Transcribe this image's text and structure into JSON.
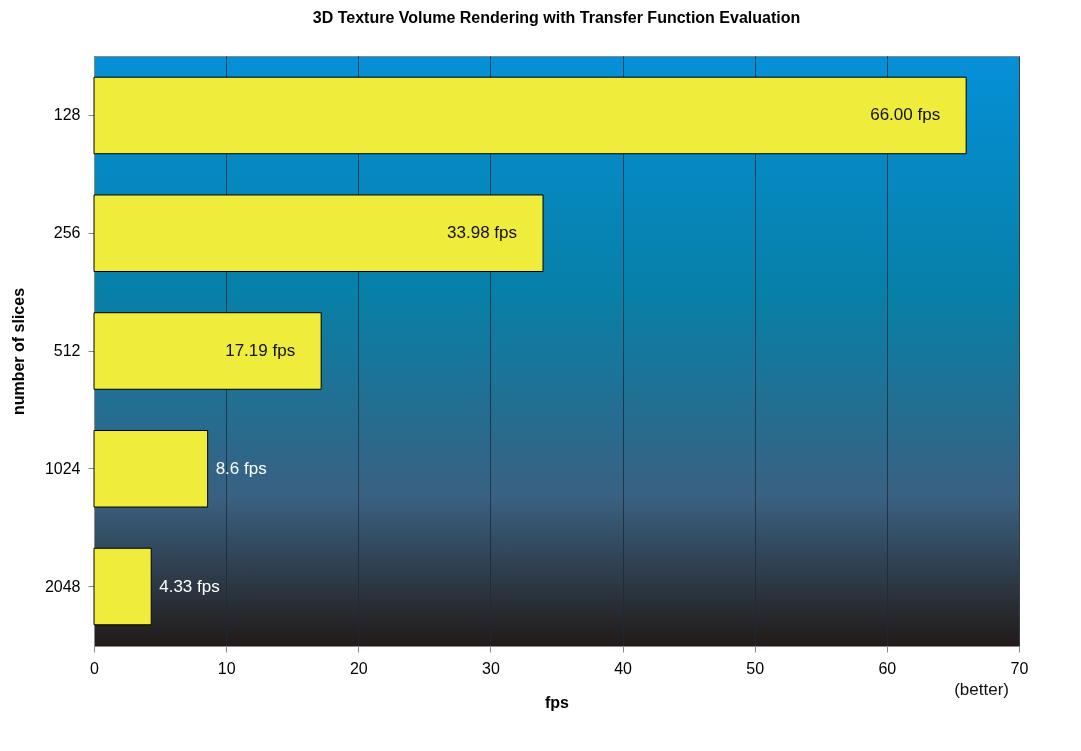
{
  "chart_data": {
    "type": "bar",
    "orientation": "horizontal",
    "title": "3D Texture Volume Rendering with Transfer Function Evaluation",
    "xlabel": "fps",
    "ylabel": "number of slices",
    "categories": [
      "128",
      "256",
      "512",
      "1024",
      "2048"
    ],
    "values": [
      66.0,
      33.98,
      17.19,
      8.6,
      4.33
    ],
    "value_labels": [
      "66.00 fps",
      "33.98 fps",
      "17.19 fps",
      "8.6 fps",
      "4.33 fps"
    ],
    "color": "#f0ec3c",
    "xlim": [
      0,
      70
    ],
    "xticks": [
      0,
      10,
      20,
      30,
      40,
      50,
      60,
      70
    ],
    "grid": "x",
    "annotations": [
      "(better)"
    ]
  }
}
